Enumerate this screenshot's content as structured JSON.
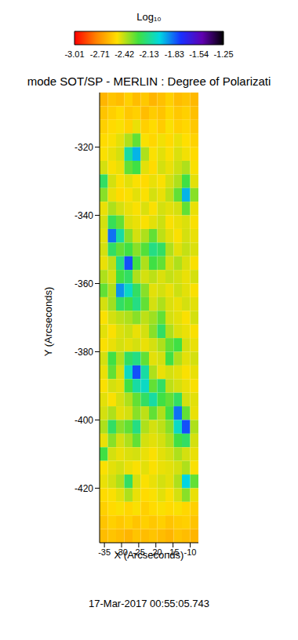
{
  "chart_data": {
    "type": "heatmap",
    "title": "mode SOT/SP - MERLIN : Degree of Polarizati",
    "x_label": "X (Arcseconds)",
    "y_label": "Y (Arcseconds)",
    "annotation": "17-Mar-2017 00:55:05.743",
    "xlim": [
      -36.4,
      -7.6
    ],
    "ylim": [
      -436,
      -304
    ],
    "xticks": [
      -35,
      -30,
      -25,
      -20,
      -15,
      -10
    ],
    "yticks": [
      -320,
      -340,
      -360,
      -380,
      -400,
      -420
    ],
    "x_edges": [
      -36.4,
      -34.0,
      -31.6,
      -29.2,
      -26.8,
      -24.4,
      -22.0,
      -19.6,
      -17.2,
      -14.8,
      -12.4,
      -10.0,
      -7.6
    ],
    "y_edges": [
      -304,
      -308,
      -312,
      -316,
      -320,
      -324,
      -328,
      -332,
      -336,
      -340,
      -344,
      -348,
      -352,
      -356,
      -360,
      -364,
      -368,
      -372,
      -376,
      -380,
      -384,
      -388,
      -392,
      -396,
      -400,
      -404,
      -408,
      -412,
      -416,
      -420,
      -424,
      -428,
      -432,
      -436
    ],
    "cells": [
      [
        -2.62,
        -2.58,
        -2.6,
        -2.55,
        -2.6,
        -2.57,
        -2.62,
        -2.59,
        -2.55,
        -2.6,
        -2.58,
        -2.61
      ],
      [
        -2.58,
        -2.55,
        -2.52,
        -2.57,
        -2.55,
        -2.6,
        -2.56,
        -2.58,
        -2.53,
        -2.57,
        -2.55,
        -2.59
      ],
      [
        -2.55,
        -2.52,
        -2.5,
        -2.54,
        -2.48,
        -2.55,
        -2.52,
        -2.56,
        -2.5,
        -2.55,
        -2.53,
        -2.57
      ],
      [
        -2.52,
        -2.5,
        -2.47,
        -2.4,
        -2.3,
        -2.5,
        -2.53,
        -2.49,
        -2.52,
        -2.48,
        -2.51,
        -2.54
      ],
      [
        -2.5,
        -2.48,
        -2.45,
        -2.1,
        -1.95,
        -2.4,
        -2.5,
        -2.47,
        -2.5,
        -2.46,
        -2.49,
        -2.52
      ],
      [
        -2.45,
        -2.5,
        -2.48,
        -2.3,
        -2.25,
        -2.47,
        -2.52,
        -2.45,
        -2.48,
        -2.44,
        -2.4,
        -2.5
      ],
      [
        -2.2,
        -2.45,
        -2.5,
        -2.47,
        -2.5,
        -2.52,
        -2.48,
        -2.5,
        -2.45,
        -2.4,
        -2.25,
        -2.47
      ],
      [
        -2.35,
        -2.48,
        -2.52,
        -2.5,
        -2.47,
        -2.5,
        -2.45,
        -2.48,
        -2.42,
        -2.3,
        -1.95,
        -2.35
      ],
      [
        -2.48,
        -2.4,
        -2.45,
        -2.48,
        -2.5,
        -2.46,
        -2.5,
        -2.45,
        -2.47,
        -2.45,
        -2.3,
        -2.48
      ],
      [
        -2.45,
        -2.22,
        -2.3,
        -2.46,
        -2.48,
        -2.5,
        -2.47,
        -2.44,
        -2.5,
        -2.48,
        -2.46,
        -2.5
      ],
      [
        -2.47,
        -1.85,
        -2.1,
        -2.35,
        -2.45,
        -2.4,
        -2.3,
        -2.42,
        -2.47,
        -2.5,
        -2.45,
        -2.48
      ],
      [
        -2.45,
        -2.2,
        -2.3,
        -2.25,
        -2.35,
        -2.28,
        -2.15,
        -2.2,
        -2.4,
        -2.47,
        -2.43,
        -2.46
      ],
      [
        -2.48,
        -2.42,
        -2.15,
        -1.8,
        -2.25,
        -2.4,
        -2.25,
        -2.3,
        -2.45,
        -2.4,
        -2.46,
        -2.5
      ],
      [
        -2.4,
        -2.45,
        -2.25,
        -2.2,
        -2.4,
        -2.45,
        -2.42,
        -2.46,
        -2.43,
        -2.45,
        -2.48,
        -2.45
      ],
      [
        -2.3,
        -2.4,
        -1.9,
        -2.05,
        -2.2,
        -2.35,
        -2.47,
        -2.45,
        -2.48,
        -2.44,
        -2.47,
        -2.5
      ],
      [
        -2.45,
        -2.38,
        -2.2,
        -2.25,
        -2.15,
        -2.3,
        -2.45,
        -2.4,
        -2.46,
        -2.48,
        -2.45,
        -2.47
      ],
      [
        -2.5,
        -2.45,
        -2.42,
        -2.4,
        -2.35,
        -2.42,
        -2.38,
        -2.3,
        -2.45,
        -2.47,
        -2.5,
        -2.45
      ],
      [
        -2.47,
        -2.5,
        -2.46,
        -2.44,
        -2.48,
        -2.45,
        -2.35,
        -2.2,
        -2.4,
        -2.46,
        -2.48,
        -2.5
      ],
      [
        -2.5,
        -2.48,
        -2.45,
        -2.47,
        -2.45,
        -2.48,
        -2.45,
        -2.4,
        -2.3,
        -2.25,
        -2.45,
        -2.48
      ],
      [
        -2.45,
        -2.25,
        -2.4,
        -2.2,
        -2.15,
        -2.3,
        -2.47,
        -2.45,
        -2.25,
        -2.4,
        -2.47,
        -2.45
      ],
      [
        -2.48,
        -2.3,
        -2.45,
        -2.05,
        -1.8,
        -2.1,
        -2.4,
        -2.48,
        -2.45,
        -2.47,
        -2.5,
        -2.48
      ],
      [
        -2.5,
        -2.45,
        -2.47,
        -2.25,
        -2.1,
        -2.05,
        -2.3,
        -2.2,
        -2.42,
        -2.45,
        -2.48,
        -2.5
      ],
      [
        -2.47,
        -2.5,
        -2.45,
        -2.4,
        -2.3,
        -2.2,
        -2.1,
        -2.25,
        -2.3,
        -2.2,
        -2.45,
        -2.47
      ],
      [
        -2.45,
        -2.4,
        -2.47,
        -2.45,
        -2.35,
        -2.42,
        -2.3,
        -2.4,
        -2.25,
        -1.85,
        -2.3,
        -2.48
      ],
      [
        -2.4,
        -2.2,
        -2.35,
        -2.3,
        -2.15,
        -2.4,
        -2.45,
        -2.42,
        -2.35,
        -2.05,
        -1.8,
        -2.4
      ],
      [
        -2.48,
        -2.35,
        -2.45,
        -2.4,
        -2.3,
        -2.45,
        -2.47,
        -2.45,
        -2.4,
        -2.25,
        -2.2,
        -2.45
      ],
      [
        -2.25,
        -2.45,
        -2.48,
        -2.46,
        -2.45,
        -2.48,
        -2.5,
        -2.47,
        -2.45,
        -2.4,
        -2.45,
        -2.48
      ],
      [
        -2.5,
        -2.47,
        -2.45,
        -2.48,
        -2.5,
        -2.47,
        -2.5,
        -2.48,
        -2.47,
        -2.45,
        -2.4,
        -2.5
      ],
      [
        -2.48,
        -2.45,
        -2.4,
        -2.2,
        -2.45,
        -2.5,
        -2.48,
        -2.45,
        -2.47,
        -2.4,
        -2.0,
        -2.3
      ],
      [
        -2.52,
        -2.5,
        -2.47,
        -2.4,
        -2.48,
        -2.52,
        -2.5,
        -2.47,
        -2.5,
        -2.45,
        -2.35,
        -2.48
      ],
      [
        -2.55,
        -2.52,
        -2.5,
        -2.53,
        -2.5,
        -2.55,
        -2.52,
        -2.5,
        -2.52,
        -2.5,
        -2.53,
        -2.55
      ],
      [
        -2.58,
        -2.55,
        -2.57,
        -2.55,
        -2.58,
        -2.55,
        -2.57,
        -2.55,
        -2.58,
        -2.56,
        -2.55,
        -2.58
      ],
      [
        -2.6,
        -2.58,
        -2.6,
        -2.62,
        -2.58,
        -2.6,
        -2.58,
        -2.6,
        -2.62,
        -2.58,
        -2.6,
        -2.62
      ]
    ],
    "colorbar": {
      "label": "Log₁₀",
      "range": [
        -3.01,
        -1.25
      ],
      "ticks": [
        -3.01,
        -2.71,
        -2.42,
        -2.13,
        -1.83,
        -1.54,
        -1.25
      ],
      "colors": [
        "#ff0000",
        "#ff8000",
        "#ffe000",
        "#40e040",
        "#00d8e0",
        "#1830ff",
        "#6000b0",
        "#000000"
      ]
    }
  }
}
